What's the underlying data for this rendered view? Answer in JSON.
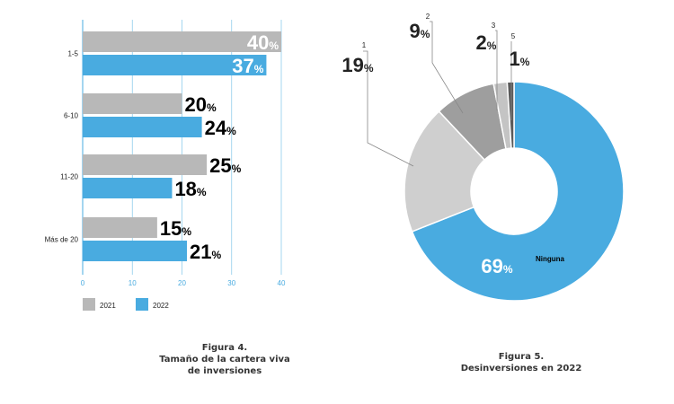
{
  "chart_data": [
    {
      "type": "bar",
      "orientation": "horizontal",
      "categories": [
        "1-5",
        "6-10",
        "11-20",
        "Más de 20"
      ],
      "series": [
        {
          "name": "2021",
          "values": [
            40,
            20,
            25,
            15
          ],
          "color": "#b8b8b8"
        },
        {
          "name": "2022",
          "values": [
            37,
            24,
            18,
            21
          ],
          "color": "#49abe0"
        }
      ],
      "xlim": [
        0,
        40
      ],
      "xticks": [
        "0",
        "10",
        "20",
        "30",
        "40"
      ],
      "value_suffix": "%",
      "grid": true,
      "legend_position": "bottom-left"
    },
    {
      "type": "pie",
      "style": "donut",
      "slices": [
        {
          "label": "Ninguna",
          "value": 69,
          "color": "#49abe0"
        },
        {
          "label": "1",
          "value": 19,
          "color": "#cfcfcf"
        },
        {
          "label": "2",
          "value": 9,
          "color": "#9e9e9e"
        },
        {
          "label": "3",
          "value": 2,
          "color": "#c4c4c4"
        },
        {
          "label": "5",
          "value": 1,
          "color": "#5a5a5a"
        }
      ],
      "value_suffix": "%"
    }
  ],
  "figure4_caption": [
    "Figura 4.",
    "Tamaño de la cartera viva",
    "de inversiones"
  ],
  "figure5_caption": [
    "Figura 5.",
    "Desinversiones en 2022"
  ]
}
